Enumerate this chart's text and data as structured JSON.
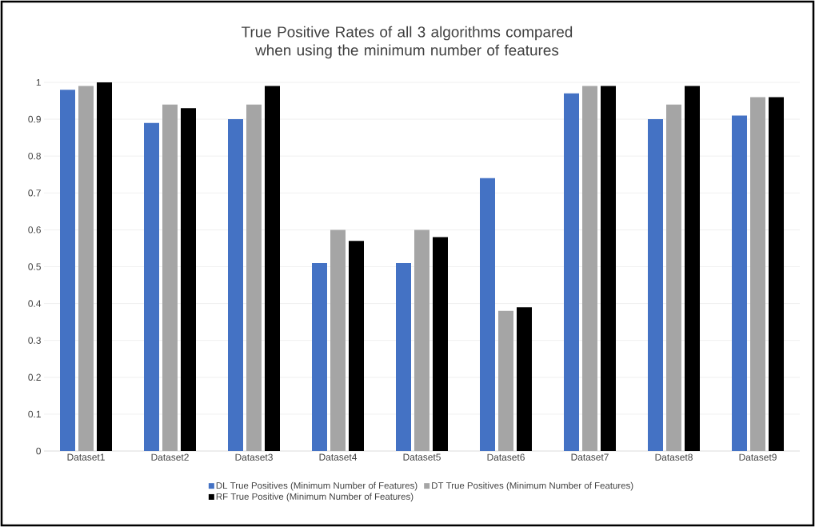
{
  "chart_data": {
    "type": "bar",
    "title": "True Positive Rates of all 3 algorithms compared when using the minimum number of features",
    "categories": [
      "Dataset1",
      "Dataset2",
      "Dataset3",
      "Dataset4",
      "Dataset5",
      "Dataset6",
      "Dataset7",
      "Dataset8",
      "Dataset9"
    ],
    "series": [
      {
        "name": "DL True Positives (Minimum Number of Features)",
        "color": "#4472c4",
        "values": [
          0.98,
          0.89,
          0.9,
          0.51,
          0.51,
          0.74,
          0.97,
          0.9,
          0.91
        ]
      },
      {
        "name": "DT True Positives (Minimum Number of Features)",
        "color": "#a5a5a5",
        "values": [
          0.99,
          0.94,
          0.94,
          0.6,
          0.6,
          0.38,
          0.99,
          0.94,
          0.96
        ]
      },
      {
        "name": "RF True Positive (Minimum Number of Features)",
        "color": "#000000",
        "values": [
          1.0,
          0.93,
          0.99,
          0.57,
          0.58,
          0.39,
          0.99,
          0.99,
          0.96
        ]
      }
    ],
    "ylim": [
      0,
      1
    ],
    "yticks": [
      0,
      0.1,
      0.2,
      0.3,
      0.4,
      0.5,
      0.6,
      0.7,
      0.8,
      0.9,
      1
    ],
    "grid": "y",
    "legend": "bottom"
  }
}
